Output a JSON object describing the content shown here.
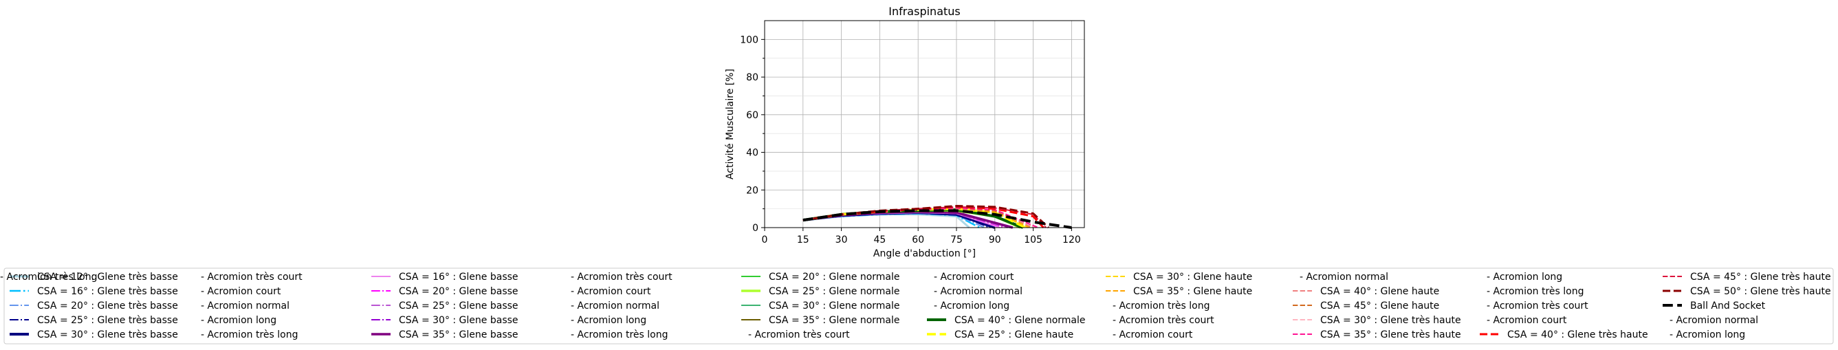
{
  "chart_data": {
    "type": "line",
    "title": "Infraspinatus",
    "xlabel": "Angle d'abduction [°]",
    "ylabel": "Activité Musculaire [%]",
    "xlim": [
      0,
      125
    ],
    "ylim": [
      0,
      110
    ],
    "xticks": [
      0,
      15,
      30,
      45,
      60,
      75,
      90,
      105,
      120
    ],
    "yticks": [
      0,
      20,
      40,
      60,
      80,
      100
    ],
    "grid": true,
    "legend_position": "bottom",
    "legend_columns": 6,
    "series": [
      {
        "name": "CSA = 12° : Glene très basse",
        "color": "#add8e6",
        "dash": "solid",
        "width": 3,
        "x": [
          15,
          30,
          45,
          60,
          75,
          80
        ],
        "y": [
          4,
          6,
          7,
          7,
          6,
          0
        ]
      },
      {
        "name": "CSA = 16° : Glene très basse",
        "color": "#00bfff",
        "dash": "dashdot",
        "width": 2.5,
        "x": [
          15,
          30,
          45,
          60,
          75,
          84
        ],
        "y": [
          4,
          6,
          7,
          7.5,
          6.5,
          0
        ]
      },
      {
        "name": "CSA = 20° : Glene très basse",
        "color": "#6495ed",
        "dash": "dashdot",
        "width": 2,
        "x": [
          15,
          30,
          45,
          60,
          75,
          86
        ],
        "y": [
          4,
          6,
          7,
          7.5,
          6.5,
          0
        ]
      },
      {
        "name": "CSA = 25° : Glene très basse",
        "color": "#00008b",
        "dash": "dashdot",
        "width": 2,
        "x": [
          15,
          30,
          45,
          60,
          75,
          88
        ],
        "y": [
          4,
          6,
          7.5,
          8,
          7,
          0
        ]
      },
      {
        "name": "CSA = 30° : Glene très basse",
        "color": "#000080",
        "dash": "solid",
        "width": 4,
        "x": [
          15,
          30,
          45,
          60,
          75,
          90
        ],
        "y": [
          4,
          6.5,
          7.5,
          8,
          7,
          0
        ]
      },
      {
        "name": "CSA = 16° : Glene basse",
        "color": "#ee82ee",
        "dash": "solid",
        "width": 2,
        "x": [
          15,
          30,
          45,
          60,
          75,
          92
        ],
        "y": [
          4,
          6.5,
          7.5,
          8,
          7.5,
          0
        ]
      },
      {
        "name": "CSA = 20° : Glene basse",
        "color": "#ff00ff",
        "dash": "dashdot",
        "width": 2,
        "x": [
          15,
          30,
          45,
          60,
          75,
          94
        ],
        "y": [
          4,
          6.5,
          8,
          8.5,
          7.5,
          0
        ]
      },
      {
        "name": "CSA = 25° : Glene basse",
        "color": "#ba55d3",
        "dash": "dashdot",
        "width": 2,
        "x": [
          15,
          30,
          45,
          60,
          75,
          95
        ],
        "y": [
          4,
          6.5,
          8,
          8.5,
          7.5,
          0
        ]
      },
      {
        "name": "CSA = 30° : Glene basse",
        "color": "#9400d3",
        "dash": "dashdot",
        "width": 2,
        "x": [
          15,
          30,
          45,
          60,
          75,
          96
        ],
        "y": [
          4,
          6.5,
          8,
          8.5,
          8,
          0
        ]
      },
      {
        "name": "CSA = 35° : Glene basse",
        "color": "#800080",
        "dash": "solid",
        "width": 3.5,
        "x": [
          15,
          30,
          45,
          60,
          75,
          97
        ],
        "y": [
          4,
          6.5,
          8,
          8.5,
          8,
          0
        ]
      },
      {
        "name": "CSA = 20° : Glene normale",
        "color": "#32cd32",
        "dash": "solid",
        "width": 2,
        "x": [
          15,
          30,
          45,
          60,
          75,
          90,
          100
        ],
        "y": [
          4,
          7,
          8.5,
          9,
          9,
          6,
          0
        ]
      },
      {
        "name": "CSA = 25° : Glene normale",
        "color": "#adff2f",
        "dash": "solid",
        "width": 3.5,
        "x": [
          15,
          30,
          45,
          60,
          75,
          90,
          100
        ],
        "y": [
          4,
          7,
          8.5,
          9,
          9,
          6,
          0
        ]
      },
      {
        "name": "CSA = 30° : Glene normale",
        "color": "#3cb371",
        "dash": "solid",
        "width": 2,
        "x": [
          15,
          30,
          45,
          60,
          75,
          90,
          100
        ],
        "y": [
          4,
          7,
          8.5,
          9,
          9,
          6,
          0
        ]
      },
      {
        "name": "CSA = 35° : Glene normale",
        "color": "#6b5d00",
        "dash": "solid",
        "width": 2,
        "x": [
          15,
          30,
          45,
          60,
          75,
          90,
          100
        ],
        "y": [
          4,
          7,
          8.5,
          9,
          9,
          6,
          0
        ]
      },
      {
        "name": "CSA = 40° : Glene normale",
        "color": "#006400",
        "dash": "solid",
        "width": 4,
        "x": [
          15,
          30,
          45,
          60,
          75,
          90,
          101
        ],
        "y": [
          4,
          7,
          8.5,
          9,
          9.5,
          6,
          0
        ]
      },
      {
        "name": "CSA = 25° : Glene haute",
        "color": "#ffff00",
        "dash": "dashed",
        "width": 3.5,
        "x": [
          15,
          30,
          45,
          60,
          75,
          90,
          102
        ],
        "y": [
          4,
          7,
          8.5,
          9.5,
          10,
          8,
          0
        ]
      },
      {
        "name": "CSA = 30° : Glene haute",
        "color": "#ffd700",
        "dash": "dashed",
        "width": 2,
        "x": [
          15,
          30,
          45,
          60,
          75,
          90,
          103
        ],
        "y": [
          4,
          7,
          8.5,
          9.5,
          10,
          8,
          0
        ]
      },
      {
        "name": "CSA = 35° : Glene haute",
        "color": "#ffa500",
        "dash": "dashed",
        "width": 2,
        "x": [
          15,
          30,
          45,
          60,
          75,
          90,
          104
        ],
        "y": [
          4,
          7,
          8.5,
          9.5,
          10,
          8.5,
          0
        ]
      },
      {
        "name": "CSA = 40° : Glene haute",
        "color": "#f08080",
        "dash": "dashed",
        "width": 2,
        "x": [
          15,
          30,
          45,
          60,
          75,
          90,
          105
        ],
        "y": [
          4,
          7,
          8.5,
          9.5,
          10,
          9,
          0
        ]
      },
      {
        "name": "CSA = 45° : Glene haute",
        "color": "#d2691e",
        "dash": "dashed",
        "width": 2,
        "x": [
          15,
          30,
          45,
          60,
          75,
          90,
          106
        ],
        "y": [
          4,
          7,
          8.5,
          9.5,
          10.5,
          9,
          0
        ]
      },
      {
        "name": "CSA = 30° : Glene très haute",
        "color": "#ffb6c1",
        "dash": "dashed",
        "width": 2,
        "x": [
          15,
          30,
          45,
          60,
          75,
          90,
          106
        ],
        "y": [
          4,
          7,
          8.5,
          9.5,
          10.5,
          9.5,
          0
        ]
      },
      {
        "name": "CSA = 35° : Glene très haute",
        "color": "#ff1493",
        "dash": "dashed",
        "width": 2,
        "x": [
          15,
          30,
          45,
          60,
          75,
          90,
          107
        ],
        "y": [
          4,
          7,
          8.5,
          9.5,
          10.5,
          9.5,
          0
        ]
      },
      {
        "name": "CSA = 40° : Glene très haute",
        "color": "#ff0000",
        "dash": "dashed",
        "width": 3,
        "x": [
          15,
          30,
          45,
          60,
          75,
          90,
          105,
          109
        ],
        "y": [
          4,
          7,
          8.5,
          10,
          11,
          10,
          6,
          0
        ]
      },
      {
        "name": "CSA = 45° : Glene très haute",
        "color": "#dc143c",
        "dash": "dashed",
        "width": 2,
        "x": [
          15,
          30,
          45,
          60,
          75,
          90,
          105,
          110
        ],
        "y": [
          4,
          7,
          9,
          10,
          11,
          10.5,
          7,
          0
        ]
      },
      {
        "name": "CSA = 50° : Glene très haute",
        "color": "#8b0000",
        "dash": "dashed",
        "width": 3,
        "x": [
          15,
          30,
          45,
          60,
          75,
          90,
          105,
          111
        ],
        "y": [
          4,
          7,
          9,
          10,
          11.5,
          11,
          7.5,
          0
        ]
      },
      {
        "name": "Ball And Socket",
        "color": "#000000",
        "dash": "dashed",
        "width": 4,
        "x": [
          15,
          30,
          45,
          60,
          75,
          90,
          105,
          120
        ],
        "y": [
          4,
          7,
          8.5,
          9,
          9,
          7,
          3,
          0
        ]
      }
    ],
    "legend": [
      {
        "label": "CSA = 12° : Glene très basse",
        "color": "#add8e6",
        "dash": "solid",
        "width": 3
      },
      {
        "label": "CSA = 16° : Glene très basse",
        "color": "#00bfff",
        "dash": "dashdot",
        "width": 2.5
      },
      {
        "label": "CSA = 20° : Glene très basse",
        "color": "#6495ed",
        "dash": "dashdot",
        "width": 2
      },
      {
        "label": "CSA = 25° : Glene très basse",
        "color": "#00008b",
        "dash": "dashdot",
        "width": 2
      },
      {
        "label": "CSA = 30° : Glene très basse",
        "color": "#000080",
        "dash": "solid",
        "width": 4
      },
      {
        "label": "- Acromion très court",
        "color": null
      },
      {
        "label": "- Acromion court",
        "color": null
      },
      {
        "label": "- Acromion normal",
        "color": null
      },
      {
        "label": "- Acromion long",
        "color": null
      },
      {
        "label": "- Acromion très long",
        "color": null
      },
      {
        "label": "CSA = 16° : Glene basse",
        "color": "#ee82ee",
        "dash": "solid",
        "width": 2
      },
      {
        "label": "CSA = 20° : Glene basse",
        "color": "#ff00ff",
        "dash": "dashdot",
        "width": 2
      },
      {
        "label": "CSA = 25° : Glene basse",
        "color": "#ba55d3",
        "dash": "dashdot",
        "width": 2
      },
      {
        "label": "CSA = 30° : Glene basse",
        "color": "#9400d3",
        "dash": "dashdot",
        "width": 2
      },
      {
        "label": "CSA = 35° : Glene basse",
        "color": "#800080",
        "dash": "solid",
        "width": 3.5
      },
      {
        "label": "- Acromion très court",
        "color": null
      },
      {
        "label": "- Acromion court",
        "color": null
      },
      {
        "label": "- Acromion normal",
        "color": null
      },
      {
        "label": "- Acromion long",
        "color": null
      },
      {
        "label": "- Acromion très long",
        "color": null
      },
      {
        "label": "CSA = 20° : Glene normale",
        "color": "#32cd32",
        "dash": "solid",
        "width": 2
      },
      {
        "label": "CSA = 25° : Glene normale",
        "color": "#adff2f",
        "dash": "solid",
        "width": 3.5
      },
      {
        "label": "CSA = 30° : Glene normale",
        "color": "#3cb371",
        "dash": "solid",
        "width": 2
      },
      {
        "label": "CSA = 35° : Glene normale",
        "color": "#6b5d00",
        "dash": "solid",
        "width": 2
      },
      {
        "label": "- Acromion très court",
        "color": null
      },
      {
        "label": "- Acromion court",
        "color": null
      },
      {
        "label": "- Acromion normal",
        "color": null
      },
      {
        "label": "- Acromion long",
        "color": null
      },
      {
        "label": "CSA = 40° : Glene normale",
        "color": "#006400",
        "dash": "solid",
        "width": 4
      },
      {
        "label": "CSA = 25° : Glene haute",
        "color": "#ffff00",
        "dash": "dashed",
        "width": 3.5
      },
      {
        "label": "CSA = 30° : Glene haute",
        "color": "#ffd700",
        "dash": "dashed",
        "width": 2
      },
      {
        "label": "CSA = 35° : Glene haute",
        "color": "#ffa500",
        "dash": "dashed",
        "width": 2
      },
      {
        "label": "- Acromion très long",
        "color": null
      },
      {
        "label": "- Acromion très court",
        "color": null
      },
      {
        "label": "- Acromion court",
        "color": null
      },
      {
        "label": "- Acromion normal",
        "color": null
      },
      {
        "label": "CSA = 40° : Glene haute",
        "color": "#f08080",
        "dash": "dashed",
        "width": 2
      },
      {
        "label": "CSA = 45° : Glene haute",
        "color": "#d2691e",
        "dash": "dashed",
        "width": 2
      },
      {
        "label": "CSA = 30° : Glene très haute",
        "color": "#ffb6c1",
        "dash": "dashed",
        "width": 2
      },
      {
        "label": "CSA = 35° : Glene très haute",
        "color": "#ff1493",
        "dash": "dashed",
        "width": 2
      },
      {
        "label": "- Acromion long",
        "color": null
      },
      {
        "label": "- Acromion très long",
        "color": null
      },
      {
        "label": "- Acromion très court",
        "color": null
      },
      {
        "label": "- Acromion court",
        "color": null
      },
      {
        "label": "CSA = 40° : Glene très haute",
        "color": "#ff0000",
        "dash": "dashed",
        "width": 3
      },
      {
        "label": "CSA = 45° : Glene très haute",
        "color": "#dc143c",
        "dash": "dashed",
        "width": 2
      },
      {
        "label": "CSA = 50° : Glene très haute",
        "color": "#8b0000",
        "dash": "dashed",
        "width": 3
      },
      {
        "label": "Ball And Socket",
        "color": "#000000",
        "dash": "dashed",
        "width": 4
      },
      {
        "label": "- Acromion normal",
        "color": null
      },
      {
        "label": "- Acromion long",
        "color": null
      },
      {
        "label": "- Acromion très long",
        "color": null
      }
    ]
  }
}
